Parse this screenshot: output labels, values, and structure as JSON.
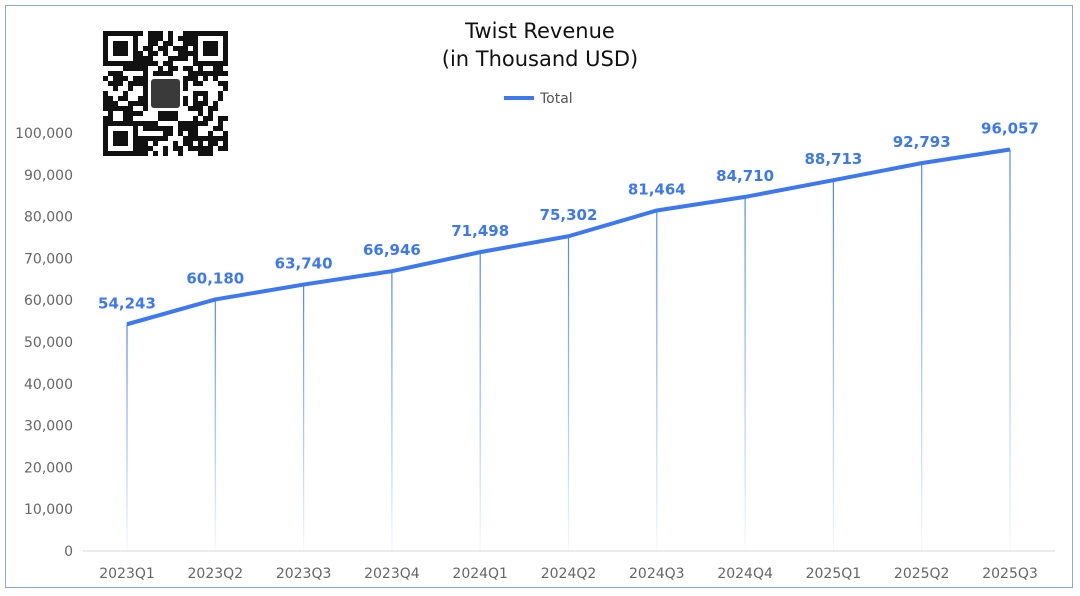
{
  "chart_data": {
    "type": "line",
    "title": [
      "Twist Revenue",
      "(in Thousand USD)"
    ],
    "xlabel": "",
    "ylabel": "",
    "categories": [
      "2023Q1",
      "2023Q2",
      "2023Q3",
      "2023Q4",
      "2024Q1",
      "2024Q2",
      "2024Q3",
      "2024Q4",
      "2025Q1",
      "2025Q2",
      "2025Q3"
    ],
    "series": [
      {
        "name": "Total",
        "color": "#3d78f0",
        "values": [
          54243,
          60180,
          63740,
          66946,
          71498,
          75302,
          81464,
          84710,
          88713,
          92793,
          96057
        ],
        "labels": [
          "54,243",
          "60,180",
          "63,740",
          "66,946",
          "71,498",
          "75,302",
          "81,464",
          "84,710",
          "88,713",
          "92,793",
          "96,057"
        ]
      }
    ],
    "ylim": [
      0,
      100000
    ],
    "yticks": [
      0,
      10000,
      20000,
      30000,
      40000,
      50000,
      60000,
      70000,
      80000,
      90000,
      100000
    ],
    "ytick_labels": [
      "0",
      "10,000",
      "20,000",
      "30,000",
      "40,000",
      "50,000",
      "60,000",
      "70,000",
      "80,000",
      "90,000",
      "100,000"
    ],
    "grid": false,
    "legend_position": "top-center"
  }
}
